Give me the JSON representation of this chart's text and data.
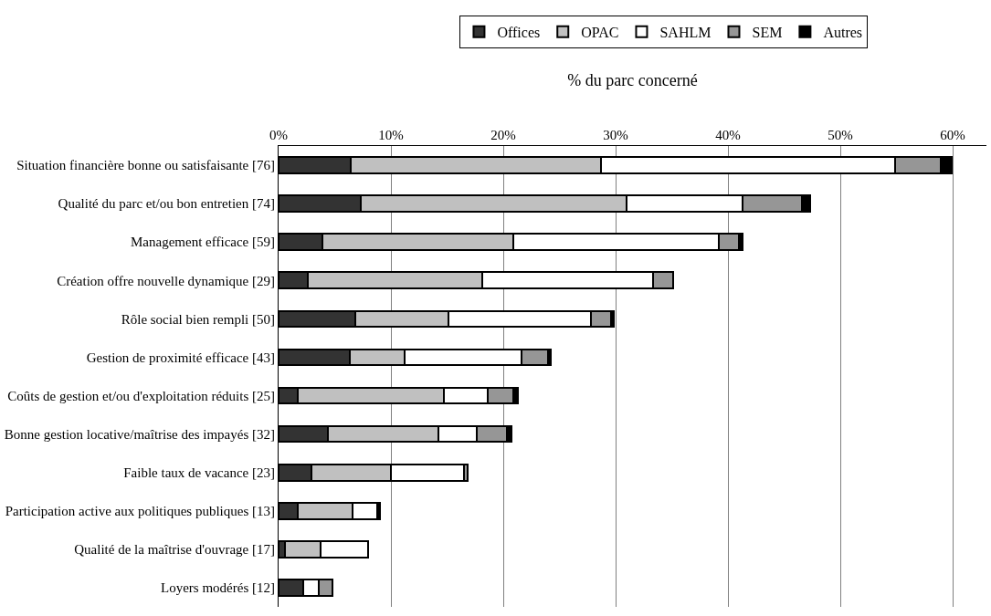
{
  "chart_data": {
    "type": "bar",
    "orientation": "horizontal",
    "stacked": true,
    "xlabel": "% du parc concerné",
    "categories": [
      "Situation financière bonne ou satisfaisante [76]",
      "Qualité du parc et/ou bon entretien [74]",
      "Management efficace [59]",
      "Création offre nouvelle dynamique [29]",
      "Rôle social bien rempli [50]",
      "Gestion de proximité efficace [43]",
      "Coûts de gestion et/ou d'exploitation réduits [25]",
      "Bonne gestion locative/maîtrise des impayés [32]",
      "Faible taux de vacance [23]",
      "Participation active aux politiques publiques [13]",
      "Qualité de la maîtrise d'ouvrage [17]",
      "Loyers modérés [12]"
    ],
    "series": [
      {
        "name": "Offices",
        "color": "#333333",
        "values": [
          6.4,
          7.3,
          3.9,
          2.6,
          6.8,
          6.3,
          1.7,
          4.4,
          2.9,
          1.7,
          0.6,
          2.2
        ]
      },
      {
        "name": "OPAC",
        "color": "#c0c0c0",
        "values": [
          22.3,
          23.7,
          17.0,
          15.5,
          8.3,
          4.9,
          13.0,
          9.8,
          7.1,
          4.9,
          3.1,
          0
        ]
      },
      {
        "name": "SAHLM",
        "color": "#ffffff",
        "values": [
          26.2,
          10.3,
          18.3,
          15.2,
          12.7,
          10.4,
          3.9,
          3.4,
          6.5,
          2.2,
          4.3,
          1.4
        ]
      },
      {
        "name": "SEM",
        "color": "#969696",
        "values": [
          4.0,
          5.3,
          1.8,
          1.8,
          1.8,
          2.4,
          2.3,
          2.7,
          0.3,
          0,
          0,
          1.2
        ]
      },
      {
        "name": "Autres",
        "color": "#000000",
        "values": [
          1.0,
          0.7,
          0.3,
          0,
          0.2,
          0.2,
          0.4,
          0.4,
          0,
          0.2,
          0,
          0
        ]
      }
    ],
    "xlim": [
      0,
      63
    ],
    "xticks": [
      {
        "value": 0,
        "label": "0%"
      },
      {
        "value": 10,
        "label": "10%"
      },
      {
        "value": 20,
        "label": "20%"
      },
      {
        "value": 30,
        "label": "30%"
      },
      {
        "value": 40,
        "label": "40%"
      },
      {
        "value": 50,
        "label": "50%"
      },
      {
        "value": 60,
        "label": "60%"
      }
    ],
    "grid": "x",
    "legend": "top"
  }
}
